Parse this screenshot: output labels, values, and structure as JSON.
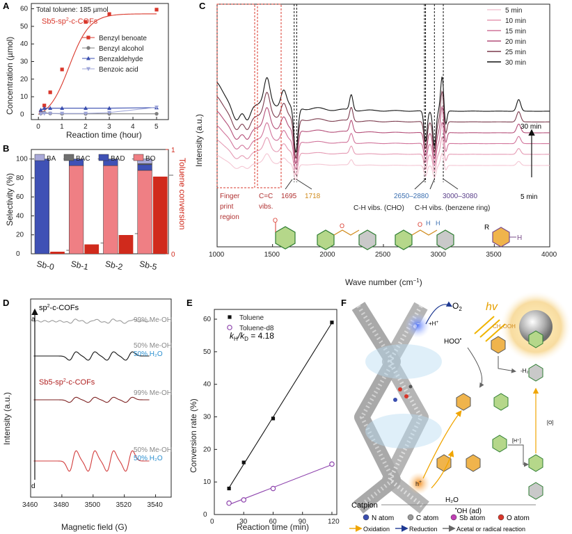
{
  "panels": {
    "A": {
      "label": "A",
      "note": "Total toluene: 185 µmol",
      "catalyst": "Sb5-sp",
      "catalyst_sup": "2",
      "catalyst_tail": "-c-COFs",
      "ylabel": "Concentration (µmol)",
      "xlabel": "Reaction time (hour)"
    },
    "B": {
      "label": "B",
      "ylabel": "Selectivity (%)",
      "y2label": "Toluene conversion"
    },
    "C": {
      "label": "C",
      "ylabel": "Intensity (a.u.)",
      "xlabel": "Wave number (cm",
      "xlabel_sup": "−1",
      "xlabel_tail": ")",
      "annot": {
        "fp1": "Finger",
        "fp2": "print",
        "fp3": "region",
        "cc1": "C=C",
        "cc2": "vibs.",
        "p1695": "1695",
        "p1718": "1718",
        "r2650": "2650–2880",
        "r3000": "3000–3080",
        "ch1": "C-H vibs. (CHO)",
        "ch2": "C-H vibs. (benzene ring)",
        "arrow_top": "30 min",
        "arrow_bottom": "5 min",
        "R": "R",
        "H": "H"
      }
    },
    "D": {
      "label": "D",
      "ylabel": "Intensity (a.u.)",
      "xlabel": "Magnetic field (G)",
      "tags": {
        "top": "sp",
        "top_sup": "2",
        "top_tail": "-c-COFs",
        "a": "a",
        "d": "d",
        "sb": "Sb5-sp",
        "sb_sup": "2",
        "sb_tail": "-c-COFs"
      },
      "trace_labels": [
        [
          "99% Me-OH",
          ""
        ],
        [
          "50% Me-OH",
          "50% H₂O"
        ],
        [
          "99% Me-OH",
          ""
        ],
        [
          "50% Me-OH",
          "50% H₂O"
        ]
      ]
    },
    "E": {
      "label": "E",
      "ylabel": "Conversion rate (%)",
      "xlabel": "Reaction time (min)",
      "kie": "k",
      "kie_h": "H",
      "kie_mid": "/k",
      "kie_d": "D",
      "kie_val": " = 4.18"
    },
    "F": {
      "label": "F",
      "o2": "O",
      "o2_sub": "2",
      "hv": "hv",
      "e": "e",
      "hplus": "+H",
      "hoo": "HOO",
      "ch2ooh": "CH₂OOH",
      "minus_h2o": "-H₂O",
      "h_plus": "[H⁺]",
      "o_br": "[O]",
      "hole": "h",
      "h2o": "H₂O",
      "oh": "OH (ad)",
      "caption": "Catpion",
      "legend": {
        "n": "N atom",
        "c": "C atom",
        "sb": "Sb atom",
        "o": "O atom"
      },
      "arrows": {
        "ox": "Oxidation",
        "red": "Reduction",
        "ac": "Acetal or radical reaction"
      }
    }
  },
  "colors": {
    "red": "#d9372b",
    "gray": "#7f7f7f",
    "blue": "#3b4fb0",
    "lav": "#9ea5d8",
    "BA": "#a9a9d9",
    "BAC": "#6f6f6f",
    "BAD": "#3f51b5",
    "BO": "#ef7f84",
    "conv": "#d02a1c",
    "purple": "#8e44ad"
  },
  "chart_data": [
    {
      "panel": "A",
      "type": "line",
      "xlabel": "Reaction time (hour)",
      "ylabel": "Concentration (µmol)",
      "xlim": [
        -0.3,
        5.5
      ],
      "ylim": [
        -3,
        63
      ],
      "xticks": [
        0,
        1,
        2,
        3,
        4,
        5
      ],
      "yticks": [
        0,
        10,
        20,
        30,
        40,
        50,
        60
      ],
      "series": [
        {
          "name": "Benzyl benoate",
          "color": "#d9372b",
          "marker": "square",
          "fit": true,
          "x": [
            0.1,
            0.25,
            0.5,
            1,
            2,
            3,
            5
          ],
          "y": [
            1,
            5,
            12.5,
            25.5,
            52.5,
            57,
            59.5
          ]
        },
        {
          "name": "Benzyl alcohol",
          "color": "#7f7f7f",
          "marker": "circle",
          "x": [
            0.1,
            0.25,
            0.5,
            1,
            2,
            3,
            5
          ],
          "y": [
            0.5,
            1,
            0.5,
            0.3,
            0.3,
            0.3,
            0.3
          ]
        },
        {
          "name": "Benzaldehyde",
          "color": "#3b4fb0",
          "marker": "triangle",
          "x": [
            0.1,
            0.25,
            0.5,
            1,
            2,
            3,
            5
          ],
          "y": [
            2.5,
            3.5,
            3.5,
            3.5,
            3.5,
            3.5,
            3.8
          ]
        },
        {
          "name": "Benzoic acid",
          "color": "#9ea5d8",
          "marker": "triangle-down",
          "x": [
            0.1,
            0.25,
            0.5,
            1,
            2,
            3,
            5
          ],
          "y": [
            0.3,
            0.5,
            0.5,
            0.5,
            0.5,
            1,
            4
          ]
        }
      ]
    },
    {
      "panel": "B",
      "type": "bar",
      "categories": [
        "Sb-0",
        "Sb-1",
        "Sb-2",
        "Sb-5"
      ],
      "ylabel": "Selectivity (%)",
      "y2label": "Toluene conversion",
      "ylim": [
        0,
        110
      ],
      "yticks": [
        0,
        20,
        40,
        60,
        80,
        100
      ],
      "y2lim": [
        0,
        1
      ],
      "y2ticks": [
        0,
        1
      ],
      "legend": [
        "BA",
        "BAC",
        "BAD",
        "BO"
      ],
      "stacks": [
        {
          "BO": 0,
          "BAD": 100,
          "BAC": 0,
          "BA": 0
        },
        {
          "BO": 93,
          "BAD": 7,
          "BAC": 0,
          "BA": 0
        },
        {
          "BO": 93,
          "BAD": 7,
          "BAC": 0,
          "BA": 0
        },
        {
          "BO": 88,
          "BAD": 6,
          "BAC": 1,
          "BA": 5
        }
      ],
      "conversion": [
        0.02,
        0.09,
        0.18,
        0.74
      ]
    },
    {
      "panel": "C",
      "type": "line",
      "xlabel": "Wave number (cm−1)",
      "ylabel": "Intensity (a.u.)",
      "xlim": [
        1000,
        4000
      ],
      "xticks": [
        1000,
        1500,
        2000,
        2500,
        3000,
        3500,
        4000
      ],
      "legend": [
        "5 min",
        "10 min",
        "15 min",
        "20 min",
        "25 min",
        "30 min"
      ],
      "colors": [
        "#f4c6d3",
        "#e59ab3",
        "#d1739a",
        "#b44e78",
        "#7a3a4c",
        "#111111"
      ],
      "scale": [
        0.35,
        0.5,
        0.62,
        0.75,
        0.88,
        1.0
      ]
    },
    {
      "panel": "D",
      "type": "line",
      "xlabel": "Magnetic field (G)",
      "ylabel": "Intensity (a.u.)",
      "xlim": [
        3460,
        3550
      ],
      "xticks": [
        3460,
        3480,
        3500,
        3520,
        3540
      ],
      "lines": [
        3487,
        3499,
        3511,
        3523
      ],
      "traces": [
        {
          "color": "#9a9a9a",
          "amp": 0.35
        },
        {
          "color": "#111111",
          "amp": 0.9
        },
        {
          "color": "#7b1e1e",
          "amp": 0.55
        },
        {
          "color": "#d23b3b",
          "amp": 2.2
        }
      ]
    },
    {
      "panel": "E",
      "type": "scatter",
      "xlabel": "Reaction time (min)",
      "ylabel": "Conversion rate (%)",
      "xlim": [
        0,
        125
      ],
      "ylim": [
        0,
        63
      ],
      "xticks": [
        0,
        30,
        60,
        90,
        120
      ],
      "yticks": [
        0,
        10,
        20,
        30,
        40,
        50,
        60
      ],
      "series": [
        {
          "name": "Toluene",
          "color": "#111111",
          "marker": "square",
          "x": [
            15,
            30,
            60,
            120
          ],
          "y": [
            8,
            16,
            29.5,
            59
          ]
        },
        {
          "name": "Toluene-d8",
          "color": "#8e44ad",
          "marker": "circle",
          "x": [
            15,
            30,
            60,
            120
          ],
          "y": [
            3.5,
            4.5,
            8,
            15.5
          ]
        }
      ]
    }
  ]
}
